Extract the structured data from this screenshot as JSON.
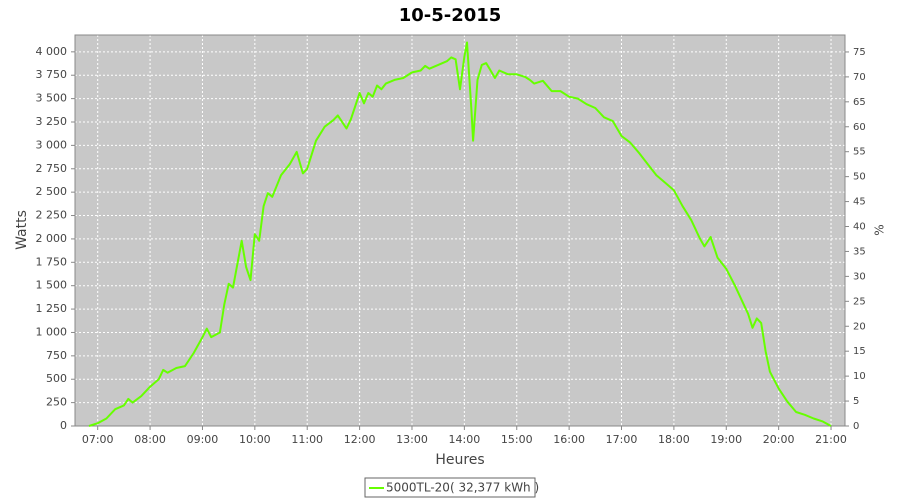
{
  "chart_data": {
    "type": "line",
    "title": "10-5-2015",
    "xlabel": "Heures",
    "ylabel": "Watts",
    "y2label": "%",
    "x": [
      "06:50",
      "07:00",
      "07:10",
      "07:20",
      "07:30",
      "07:35",
      "07:40",
      "07:50",
      "08:00",
      "08:10",
      "08:15",
      "08:20",
      "08:30",
      "08:40",
      "08:50",
      "09:00",
      "09:05",
      "09:10",
      "09:20",
      "09:25",
      "09:30",
      "09:35",
      "09:45",
      "09:50",
      "09:55",
      "10:00",
      "10:05",
      "10:10",
      "10:15",
      "10:20",
      "10:30",
      "10:40",
      "10:48",
      "10:55",
      "11:00",
      "11:10",
      "11:20",
      "11:30",
      "11:35",
      "11:45",
      "11:50",
      "12:00",
      "12:05",
      "12:10",
      "12:15",
      "12:20",
      "12:25",
      "12:30",
      "12:40",
      "12:50",
      "13:00",
      "13:10",
      "13:15",
      "13:20",
      "13:30",
      "13:40",
      "13:45",
      "13:50",
      "13:55",
      "14:00",
      "14:03",
      "14:08",
      "14:10",
      "14:15",
      "14:20",
      "14:25",
      "14:30",
      "14:35",
      "14:40",
      "14:50",
      "15:00",
      "15:10",
      "15:15",
      "15:20",
      "15:30",
      "15:40",
      "15:50",
      "16:00",
      "16:10",
      "16:20",
      "16:30",
      "16:40",
      "16:50",
      "16:55",
      "17:00",
      "17:10",
      "17:20",
      "17:30",
      "17:40",
      "17:50",
      "18:00",
      "18:10",
      "18:20",
      "18:30",
      "18:35",
      "18:42",
      "18:50",
      "19:00",
      "19:10",
      "19:20",
      "19:25",
      "19:30",
      "19:35",
      "19:40",
      "19:45",
      "19:50",
      "20:00",
      "20:10",
      "20:20",
      "20:30",
      "20:40",
      "20:50",
      "21:00"
    ],
    "series": [
      {
        "name": "5000TL-20( 32,377 kWh )",
        "color": "#66ff00",
        "values": [
          0,
          30,
          80,
          180,
          220,
          290,
          250,
          320,
          420,
          500,
          600,
          570,
          620,
          640,
          780,
          950,
          1040,
          950,
          1000,
          1300,
          1520,
          1480,
          1980,
          1700,
          1560,
          2050,
          1980,
          2350,
          2490,
          2450,
          2680,
          2800,
          2930,
          2700,
          2750,
          3050,
          3200,
          3270,
          3320,
          3180,
          3280,
          3560,
          3450,
          3560,
          3520,
          3640,
          3600,
          3660,
          3700,
          3720,
          3780,
          3800,
          3850,
          3820,
          3860,
          3900,
          3940,
          3920,
          3600,
          3950,
          4100,
          3400,
          3050,
          3700,
          3860,
          3880,
          3800,
          3720,
          3800,
          3760,
          3760,
          3730,
          3700,
          3660,
          3690,
          3580,
          3580,
          3520,
          3500,
          3440,
          3400,
          3300,
          3260,
          3180,
          3100,
          3030,
          2920,
          2800,
          2680,
          2600,
          2520,
          2350,
          2200,
          2000,
          1920,
          2020,
          1800,
          1680,
          1500,
          1300,
          1200,
          1050,
          1150,
          1100,
          800,
          580,
          400,
          260,
          150,
          120,
          80,
          50,
          0
        ]
      }
    ],
    "xlim": [
      "06:34",
      "21:16"
    ],
    "xticks": [
      "07:00",
      "08:00",
      "09:00",
      "10:00",
      "11:00",
      "12:00",
      "13:00",
      "14:00",
      "15:00",
      "16:00",
      "17:00",
      "18:00",
      "19:00",
      "20:00",
      "21:00"
    ],
    "ylim": [
      0,
      4180
    ],
    "yticks": [
      0,
      250,
      500,
      750,
      {
        "value": 1000,
        "label": "1 000"
      },
      {
        "value": 1250,
        "label": "1 250"
      },
      {
        "value": 1500,
        "label": "1 500"
      },
      {
        "value": 1750,
        "label": "1 750"
      },
      {
        "value": 2000,
        "label": "2 000"
      },
      {
        "value": 2250,
        "label": "2 250"
      },
      {
        "value": 2500,
        "label": "2 500"
      },
      {
        "value": 2750,
        "label": "2 750"
      },
      {
        "value": 3000,
        "label": "3 000"
      },
      {
        "value": 3250,
        "label": "3 250"
      },
      {
        "value": 3500,
        "label": "3 500"
      },
      {
        "value": 3750,
        "label": "3 750"
      },
      {
        "value": 4000,
        "label": "4 000"
      }
    ],
    "y2lim": [
      0,
      78.4
    ],
    "y2ticks": [
      0,
      5,
      10,
      15,
      20,
      25,
      30,
      35,
      40,
      45,
      50,
      55,
      60,
      65,
      70,
      75
    ],
    "grid": true
  }
}
